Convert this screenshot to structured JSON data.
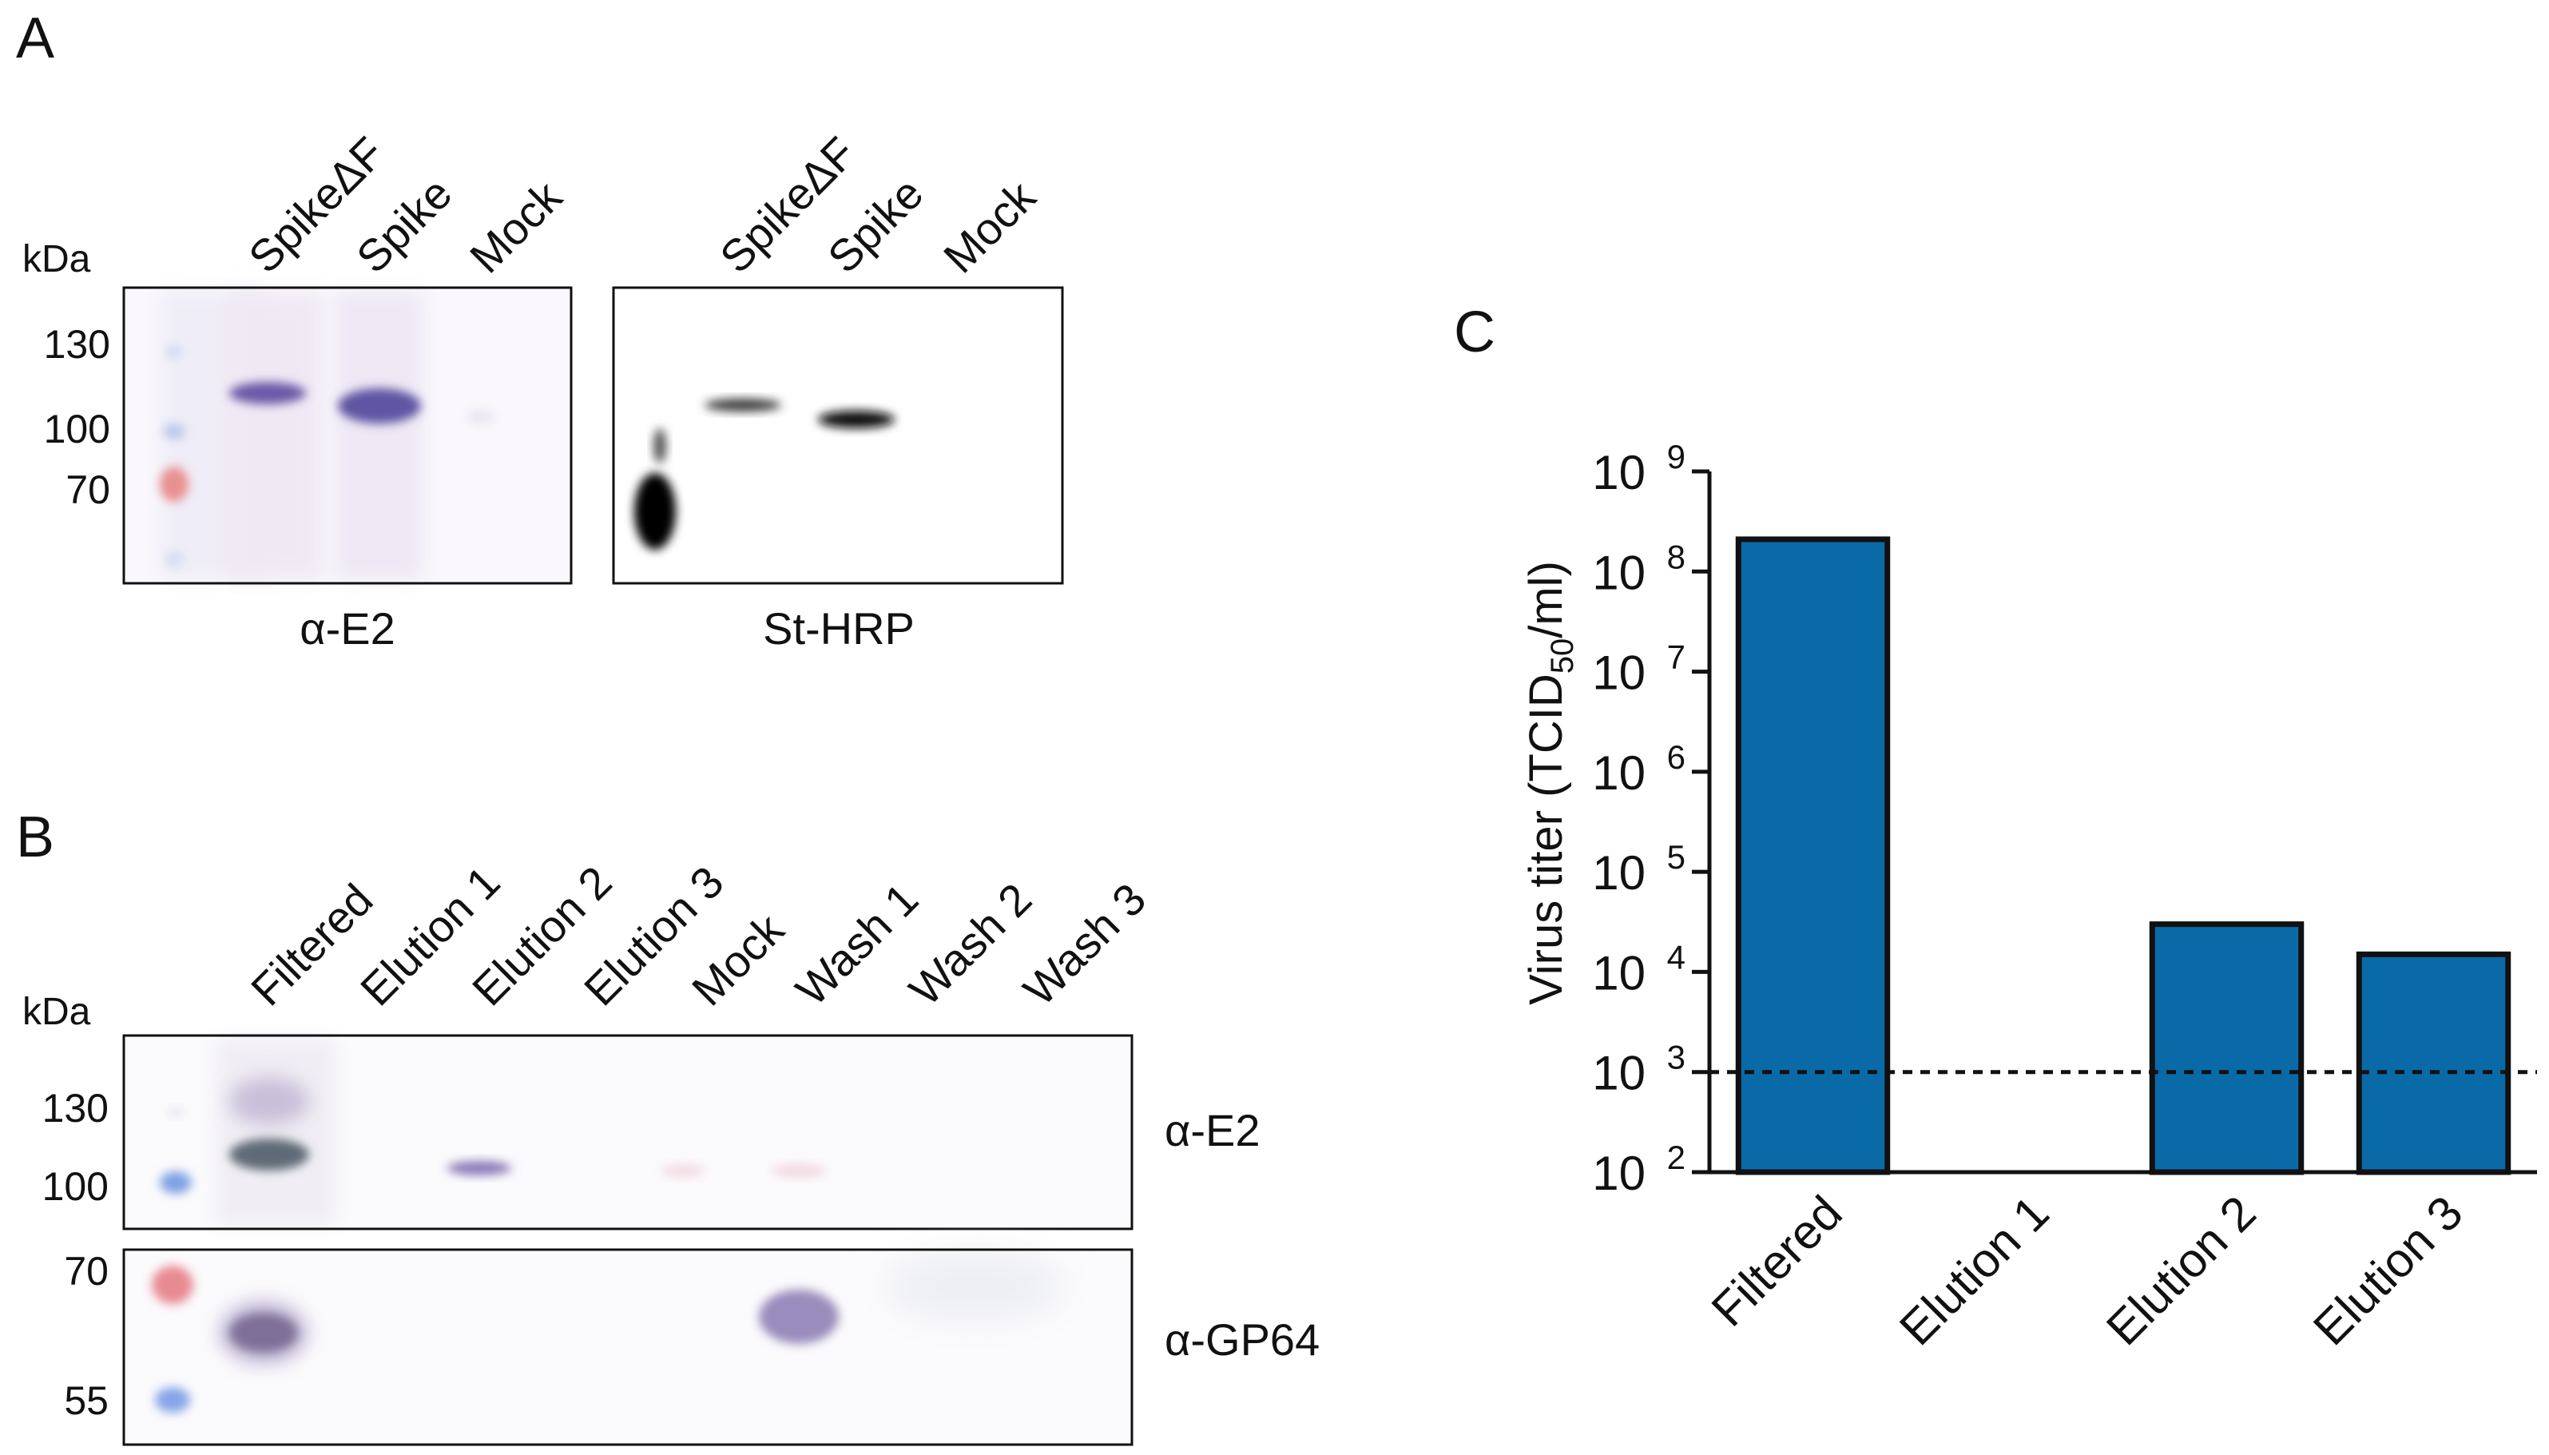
{
  "panel_a": {
    "letter": "A",
    "kda_label": "kDa",
    "markers": [
      "130",
      "100",
      "70"
    ],
    "left_blot": {
      "lanes": [
        "SpikeΔF",
        "Spike",
        "Mock"
      ],
      "caption": "α-E2"
    },
    "right_blot": {
      "lanes": [
        "SpikeΔF",
        "Spike",
        "Mock"
      ],
      "caption": "St-HRP"
    }
  },
  "panel_b": {
    "letter": "B",
    "kda_label": "kDa",
    "markers_top": [
      "130",
      "100"
    ],
    "markers_bottom": [
      "70",
      "55"
    ],
    "lanes": [
      "Filtered",
      "Elution 1",
      "Elution 2",
      "Elution 3",
      "Mock",
      "Wash 1",
      "Wash 2",
      "Wash 3"
    ],
    "top_label": "α-E2",
    "bottom_label": "α-GP64"
  },
  "panel_c": {
    "letter": "C",
    "chart_data": {
      "type": "bar",
      "scale": "log10",
      "categories": [
        "Filtered",
        "Elution 1",
        "Elution 2",
        "Elution 3"
      ],
      "values": [
        210000000,
        null,
        30000,
        15000
      ],
      "ylabel_main": "Virus titer (TCID",
      "ylabel_sub": "50",
      "ylabel_end": "/ml)",
      "ylim": [
        100,
        1000000000
      ],
      "tick_exponents": [
        "9",
        "8",
        "7",
        "6",
        "5",
        "4",
        "3",
        "2"
      ],
      "tick_base": "10",
      "detection_limit": 1000,
      "bar_color": "#0a6aa8"
    }
  }
}
